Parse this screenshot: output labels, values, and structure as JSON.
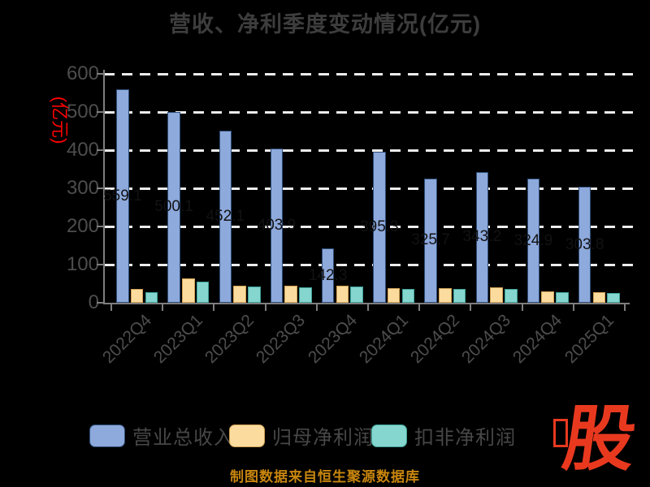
{
  "title": "营收、净利季度变动情况(亿元)",
  "y_axis_label": "(亿元)",
  "source_note": "制图数据来自恒生聚源数据库",
  "watermark": "股",
  "colors": {
    "background": "#000000",
    "title_text": "#3D3D3D",
    "tick_text": "#4D4D4D",
    "grid": "#ECECEC",
    "axis": "#7E7E7E",
    "ylabel_red": "#FF0000",
    "bar_label": "#121212",
    "source_text": "#C8860E",
    "logo_red": "#E8391F",
    "series": [
      {
        "fill": "#8EA9DB",
        "border": "#2E4E79"
      },
      {
        "fill": "#FBDC9E",
        "border": "#D2A256"
      },
      {
        "fill": "#85D6CF",
        "border": "#3FA39A"
      }
    ]
  },
  "legend": [
    {
      "label": "营业总收入",
      "color": "#8EA9DB"
    },
    {
      "label": "归母净利润",
      "color": "#FBDC9E"
    },
    {
      "label": "扣非净利润",
      "color": "#85D6CF"
    }
  ],
  "chart_data": {
    "type": "bar",
    "title": "营收、净利季度变动情况(亿元)",
    "ylabel": "(亿元)",
    "categories": [
      "2022Q4",
      "2023Q1",
      "2023Q2",
      "2023Q3",
      "2023Q4",
      "2024Q1",
      "2024Q2",
      "2024Q3",
      "2024Q4",
      "2025Q1"
    ],
    "series": [
      {
        "name": "营业总收入",
        "values": [
          559.1,
          500.1,
          452.1,
          403.9,
          142.3,
          395.3,
          325.7,
          343.2,
          324.9,
          303.8
        ],
        "labels": [
          "559.1",
          "500.1",
          "452.1",
          "403.9",
          "142.3",
          "395.3",
          "325.7",
          "343.2",
          "324.9",
          "303.8"
        ]
      },
      {
        "name": "归母净利润",
        "values": [
          35.8,
          64.2,
          45.0,
          44.3,
          44.3,
          37.9,
          37.9,
          39.4,
          30.0,
          27.2
        ]
      },
      {
        "name": "扣非净利润",
        "values": [
          28.7,
          55.7,
          41.5,
          40.7,
          41.5,
          35.8,
          36.5,
          36.4,
          27.2,
          25.1
        ]
      }
    ],
    "ylim": [
      0,
      600
    ],
    "y_ticks": [
      0,
      100,
      200,
      300,
      400,
      500,
      600
    ],
    "grid": "dashed-horizontal",
    "legend_position": "bottom"
  }
}
